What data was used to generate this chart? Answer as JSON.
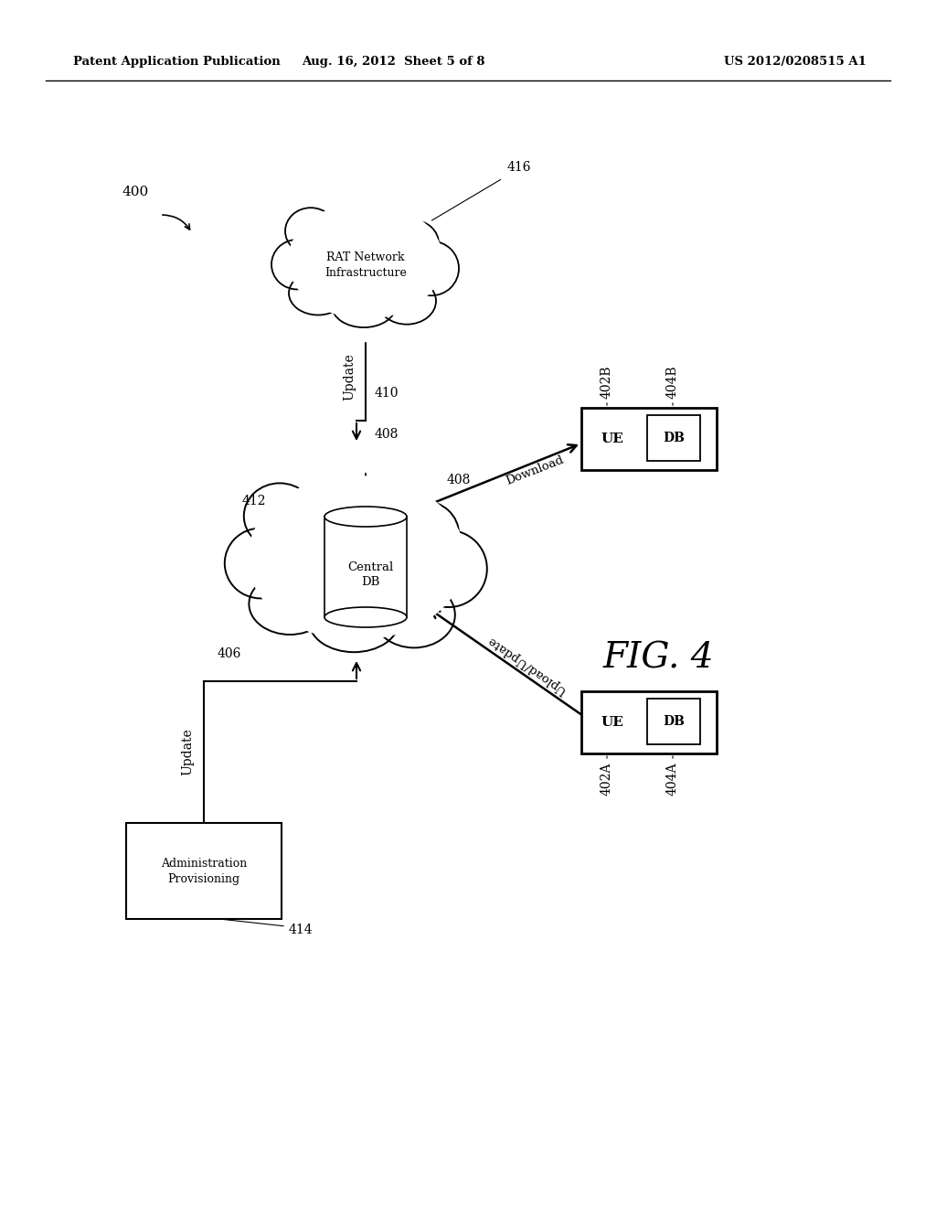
{
  "bg_color": "#ffffff",
  "header_left": "Patent Application Publication",
  "header_center": "Aug. 16, 2012  Sheet 5 of 8",
  "header_right": "US 2012/0208515 A1",
  "fig_label": "FIG. 4",
  "fig_number": "400",
  "label_402B": "402B",
  "label_404B": "404B",
  "label_402A": "402A",
  "label_404A": "404A",
  "label_408": "408",
  "label_406": "406",
  "label_410": "410",
  "label_412": "412",
  "label_414": "414",
  "label_416": "416",
  "label_download": "Download",
  "label_upload": "Upload/Update",
  "label_update_top": "Update",
  "label_update_bot": "Update"
}
